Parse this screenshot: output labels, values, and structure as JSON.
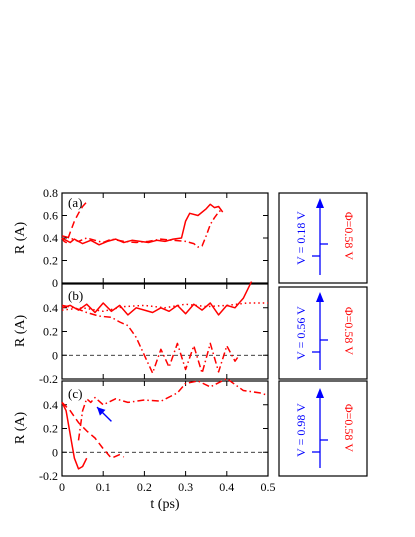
{
  "chart_data": [
    {
      "id": "a",
      "type": "line",
      "panel_label": "(a)",
      "ylabel": "R (A)",
      "xlim": [
        0,
        0.5
      ],
      "ylim": [
        0,
        0.8
      ],
      "yticks": [
        0,
        0.2,
        0.4,
        0.6,
        0.8
      ],
      "ytick_labels": [
        "0",
        "0.2",
        "0.4",
        "0.6",
        "0.8"
      ],
      "grid": false,
      "zero_line": false,
      "series": [
        {
          "style": "solid",
          "color": "#ff0000",
          "x": [
            0,
            0.01,
            0.02,
            0.03,
            0.05,
            0.07,
            0.09,
            0.11,
            0.13,
            0.15,
            0.17,
            0.19,
            0.21,
            0.23,
            0.25,
            0.27,
            0.29,
            0.3,
            0.31,
            0.33,
            0.35,
            0.36,
            0.37,
            0.38,
            0.39
          ],
          "y": [
            0.4,
            0.38,
            0.36,
            0.39,
            0.35,
            0.38,
            0.34,
            0.37,
            0.39,
            0.36,
            0.38,
            0.37,
            0.36,
            0.38,
            0.37,
            0.39,
            0.4,
            0.55,
            0.62,
            0.6,
            0.66,
            0.7,
            0.67,
            0.68,
            0.63
          ]
        },
        {
          "style": "dashed",
          "color": "#ff0000",
          "x": [
            0,
            0.005,
            0.01,
            0.015,
            0.02,
            0.03,
            0.04,
            0.05,
            0.06
          ],
          "y": [
            0.4,
            0.37,
            0.36,
            0.4,
            0.45,
            0.55,
            0.62,
            0.68,
            0.72
          ]
        },
        {
          "style": "dashdot",
          "color": "#ff0000",
          "x": [
            0,
            0.02,
            0.04,
            0.06,
            0.08,
            0.1,
            0.12,
            0.15,
            0.18,
            0.21,
            0.24,
            0.27,
            0.3,
            0.32,
            0.33,
            0.34,
            0.35,
            0.36,
            0.37,
            0.38,
            0.39
          ],
          "y": [
            0.42,
            0.4,
            0.37,
            0.4,
            0.38,
            0.36,
            0.39,
            0.37,
            0.36,
            0.37,
            0.39,
            0.38,
            0.37,
            0.35,
            0.32,
            0.33,
            0.42,
            0.52,
            0.58,
            0.63,
            0.66
          ]
        }
      ]
    },
    {
      "id": "b",
      "type": "line",
      "panel_label": "(b)",
      "ylabel": "R (A)",
      "xlim": [
        0,
        0.5
      ],
      "ylim": [
        -0.2,
        0.6
      ],
      "yticks": [
        -0.2,
        0,
        0.2,
        0.4
      ],
      "ytick_labels": [
        "-0.2",
        "0",
        "0.2",
        "0.4"
      ],
      "grid": false,
      "zero_line": true,
      "series": [
        {
          "style": "solid",
          "color": "#ff0000",
          "x": [
            0,
            0.02,
            0.04,
            0.06,
            0.08,
            0.1,
            0.12,
            0.14,
            0.16,
            0.18,
            0.2,
            0.22,
            0.24,
            0.26,
            0.28,
            0.3,
            0.32,
            0.34,
            0.36,
            0.38,
            0.4,
            0.42,
            0.44,
            0.46
          ],
          "y": [
            0.4,
            0.42,
            0.38,
            0.43,
            0.36,
            0.44,
            0.37,
            0.42,
            0.34,
            0.4,
            0.38,
            0.36,
            0.4,
            0.37,
            0.42,
            0.35,
            0.43,
            0.38,
            0.44,
            0.34,
            0.42,
            0.4,
            0.48,
            0.62
          ]
        },
        {
          "style": "dotted",
          "color": "#ff0000",
          "x": [
            0,
            0.05,
            0.1,
            0.15,
            0.2,
            0.25,
            0.3,
            0.35,
            0.4,
            0.45,
            0.5
          ],
          "y": [
            0.38,
            0.4,
            0.37,
            0.41,
            0.42,
            0.4,
            0.43,
            0.41,
            0.42,
            0.44,
            0.44
          ]
        },
        {
          "style": "dashdot",
          "color": "#ff0000",
          "x": [
            0,
            0.03,
            0.06,
            0.09,
            0.12,
            0.14,
            0.16,
            0.18,
            0.2,
            0.22,
            0.24,
            0.26,
            0.28,
            0.3,
            0.32,
            0.34,
            0.36,
            0.38,
            0.4,
            0.42,
            0.43
          ],
          "y": [
            0.42,
            0.4,
            0.36,
            0.33,
            0.32,
            0.28,
            0.25,
            0.15,
            0.0,
            -0.15,
            0.05,
            -0.1,
            0.1,
            -0.12,
            0.08,
            -0.15,
            0.1,
            -0.14,
            0.08,
            -0.05,
            0.0
          ]
        }
      ]
    },
    {
      "id": "c",
      "type": "line",
      "panel_label": "(c)",
      "ylabel": "R (A)",
      "xlabel": "t (ps)",
      "xlim": [
        0,
        0.5
      ],
      "xticks": [
        0,
        0.1,
        0.2,
        0.3,
        0.4,
        0.5
      ],
      "xtick_labels": [
        "0",
        "0.1",
        "0.2",
        "0.3",
        "0.4",
        "0.5"
      ],
      "ylim": [
        -0.2,
        0.6
      ],
      "yticks": [
        -0.2,
        0,
        0.2,
        0.4
      ],
      "ytick_labels": [
        "-0.2",
        "0",
        "0.2",
        "0.4"
      ],
      "grid": false,
      "zero_line": true,
      "series": [
        {
          "style": "solid",
          "color": "#ff0000",
          "x": [
            0,
            0.01,
            0.02,
            0.03,
            0.04,
            0.05,
            0.06
          ],
          "y": [
            0.42,
            0.35,
            0.15,
            -0.05,
            -0.14,
            -0.12,
            -0.05
          ]
        },
        {
          "style": "dashed",
          "color": "#ff0000",
          "x": [
            0,
            0.02,
            0.04,
            0.06,
            0.08,
            0.1,
            0.12,
            0.14,
            0.15
          ],
          "y": [
            0.42,
            0.35,
            0.25,
            0.18,
            0.12,
            0.03,
            -0.05,
            -0.02,
            -0.04
          ]
        },
        {
          "style": "dashdot",
          "color": "#ff0000",
          "x": [
            0.04,
            0.05,
            0.06,
            0.07,
            0.08,
            0.1,
            0.13,
            0.16,
            0.2,
            0.24,
            0.28,
            0.3,
            0.33,
            0.36,
            0.4,
            0.44,
            0.48,
            0.5
          ],
          "y": [
            0.1,
            0.35,
            0.45,
            0.42,
            0.46,
            0.4,
            0.45,
            0.42,
            0.44,
            0.43,
            0.5,
            0.58,
            0.6,
            0.55,
            0.62,
            0.52,
            0.5,
            0.48
          ]
        }
      ],
      "arrow": {
        "color": "#0000ff",
        "from": [
          0.12,
          0.26
        ],
        "to": [
          0.085,
          0.38
        ]
      }
    }
  ],
  "insets": [
    {
      "id": "a",
      "v_label": "V = 0.18 V",
      "phi_label": "Φ=0.58 V",
      "v_color": "#0000ff",
      "phi_color": "#ff0000"
    },
    {
      "id": "b",
      "v_label": "V = 0.56 V",
      "phi_label": "Φ=0.58 V",
      "v_color": "#0000ff",
      "phi_color": "#ff0000"
    },
    {
      "id": "c",
      "v_label": "V = 0.98 V",
      "phi_label": "Φ=0.58 V",
      "v_color": "#0000ff",
      "phi_color": "#ff0000"
    }
  ]
}
